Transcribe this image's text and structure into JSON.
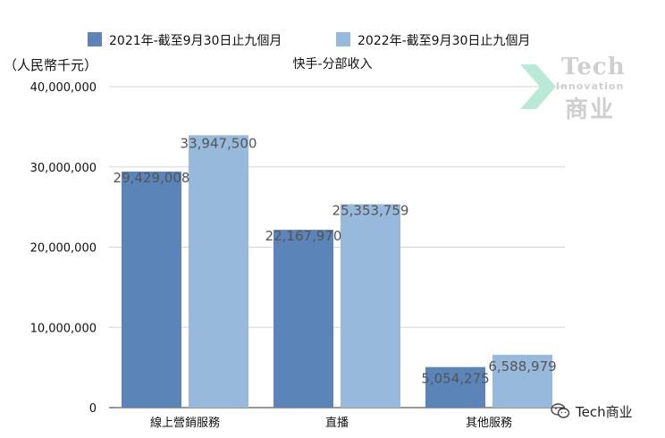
{
  "chart_data": {
    "type": "bar",
    "title": "快手-分部收入",
    "unit_label": "（人民幣千元）",
    "categories": [
      "線上營銷服務",
      "直播",
      "其他服務"
    ],
    "series": [
      {
        "name": "2021年-截至9月30日止九個月",
        "color": "#5b84b8",
        "values": [
          29429008,
          22167970,
          5054275
        ]
      },
      {
        "name": "2022年-截至9月30日止九個月",
        "color": "#97b9dc",
        "values": [
          33947500,
          25353759,
          6588979
        ]
      }
    ],
    "value_labels": [
      [
        "29,429,008",
        "22,167,970",
        "5,054,275"
      ],
      [
        "33,947,500",
        "25,353,759",
        "6,588,979"
      ]
    ],
    "ylim": [
      0,
      40000000
    ],
    "yticks": [
      0,
      10000000,
      20000000,
      30000000,
      40000000
    ],
    "ytick_labels": [
      "0",
      "10,000,000",
      "20,000,000",
      "30,000,000",
      "40,000,000"
    ],
    "grid": true,
    "legend_position": "top-center"
  },
  "watermark": {
    "line1": "Tech",
    "line2": "Innovation",
    "line3": "商业"
  },
  "wechat": {
    "icon": "wechat-icon",
    "label": "Tech商业"
  }
}
